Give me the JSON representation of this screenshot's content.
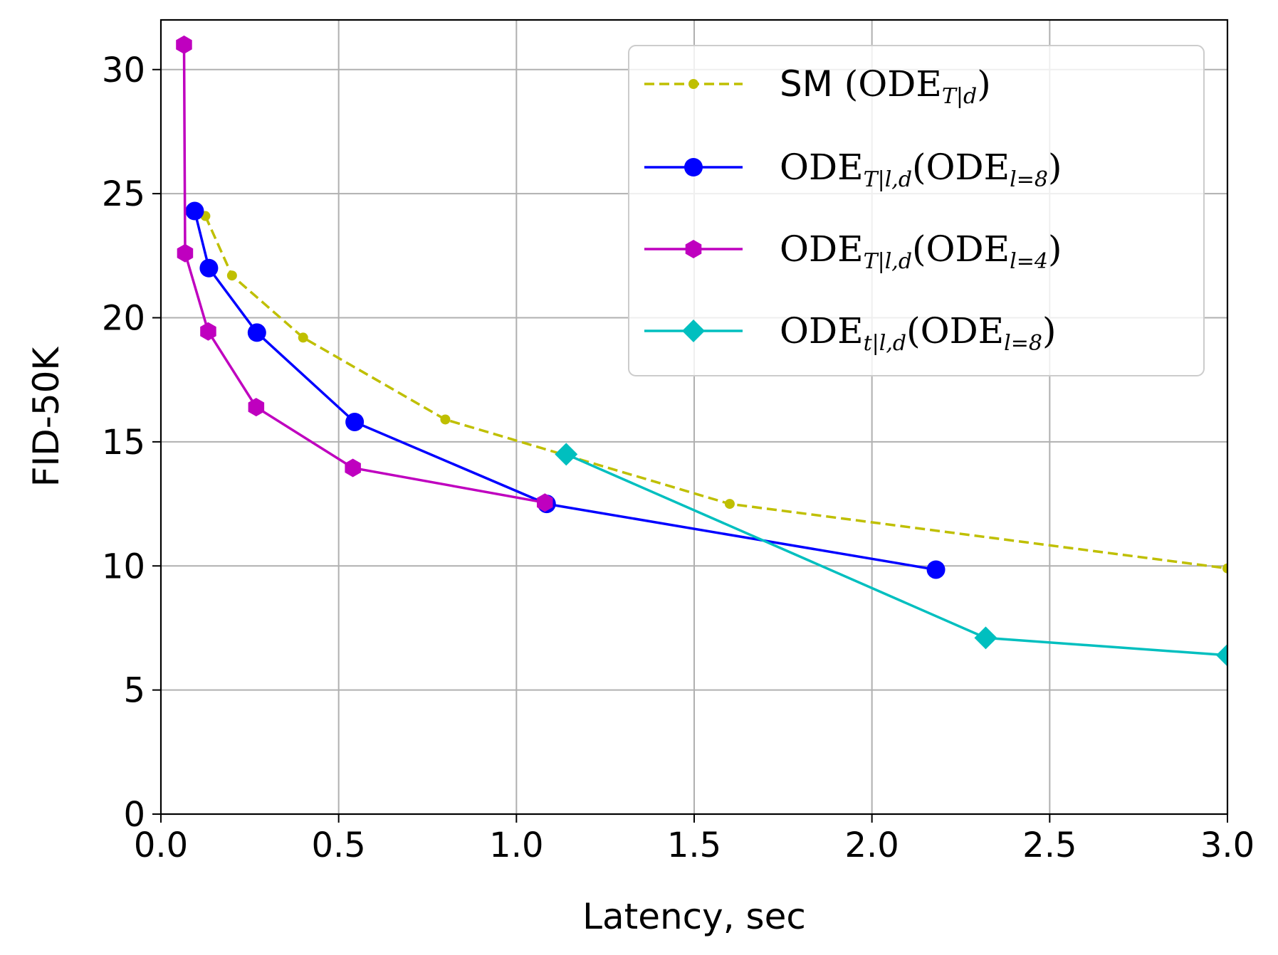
{
  "chart_data": {
    "type": "line",
    "xlabel": "Latency, sec",
    "ylabel": "FID-50K",
    "xlim": [
      0.0,
      3.0
    ],
    "ylim": [
      0,
      32
    ],
    "xticks": [
      "0.0",
      "0.5",
      "1.0",
      "1.5",
      "2.0",
      "2.5",
      "3.0"
    ],
    "yticks": [
      "0",
      "5",
      "10",
      "15",
      "20",
      "25",
      "30"
    ],
    "xtick_values": [
      0.0,
      0.5,
      1.0,
      1.5,
      2.0,
      2.5,
      3.0
    ],
    "ytick_values": [
      0,
      5,
      10,
      15,
      20,
      25,
      30
    ],
    "grid": true,
    "legend_position": "top-right",
    "series": [
      {
        "name": "SM (ODE_{T|d})",
        "legend_main": "SM ",
        "legend_math": "(ODE",
        "legend_sub": "T|d",
        "legend_close": ")",
        "color": "#bfbf00",
        "line": "dashed",
        "marker": "small-dot",
        "x": [
          0.125,
          0.2,
          0.4,
          0.8,
          1.6,
          3.0
        ],
        "y": [
          24.1,
          21.7,
          19.2,
          15.9,
          12.5,
          9.9
        ]
      },
      {
        "name": "ODE_{T|l,d}(ODE_{l=8})",
        "legend_math": "ODE",
        "legend_sub": "T|l,d",
        "legend_mid": "(ODE",
        "legend_sub2": "l=8",
        "legend_close": ")",
        "color": "#0000ff",
        "line": "solid",
        "marker": "circle",
        "x": [
          0.095,
          0.135,
          0.27,
          0.545,
          1.085,
          2.18
        ],
        "y": [
          24.3,
          22.0,
          19.4,
          15.8,
          12.5,
          9.85
        ]
      },
      {
        "name": "ODE_{T|l,d}(ODE_{l=4})",
        "legend_math": "ODE",
        "legend_sub": "T|l,d",
        "legend_mid": "(ODE",
        "legend_sub2": "l=4",
        "legend_close": ")",
        "color": "#bf00bf",
        "line": "solid",
        "marker": "hexagon",
        "x": [
          0.065,
          0.068,
          0.133,
          0.268,
          0.54,
          1.08
        ],
        "y": [
          31.0,
          22.6,
          19.45,
          16.4,
          13.95,
          12.55
        ]
      },
      {
        "name": "ODE_{t|l,d}(ODE_{l=8})",
        "legend_math": "ODE",
        "legend_sub": "t|l,d",
        "legend_mid": "(ODE",
        "legend_sub2": "l=8",
        "legend_close": ")",
        "color": "#00bfbf",
        "line": "solid",
        "marker": "diamond",
        "x": [
          1.14,
          2.32,
          3.0
        ],
        "y": [
          14.5,
          7.1,
          6.4
        ]
      }
    ]
  }
}
